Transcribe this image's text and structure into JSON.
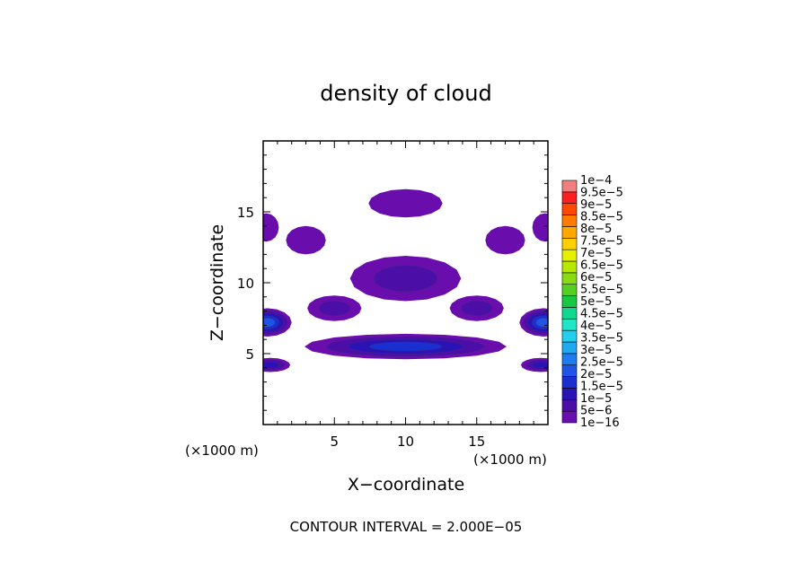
{
  "chart_data": {
    "type": "heatmap",
    "title": "density of cloud",
    "xlabel": "X−coordinate",
    "ylabel": "Z−coordinate",
    "x_unit": "(×1000 m)",
    "y_unit": "(×1000 m)",
    "xlim": [
      0,
      20
    ],
    "ylim": [
      0,
      20
    ],
    "x_ticks": [
      5,
      10,
      15
    ],
    "y_ticks": [
      5,
      10,
      15
    ],
    "footer": "CONTOUR INTERVAL = 2.000E−05",
    "colorbar": {
      "labels": [
        "1e−16",
        "5e−6",
        "1e−5",
        "1.5e−5",
        "2e−5",
        "2.5e−5",
        "3e−5",
        "3.5e−5",
        "4e−5",
        "4.5e−5",
        "5e−5",
        "5.5e−5",
        "6e−5",
        "6.5e−5",
        "7e−5",
        "7.5e−5",
        "8e−5",
        "8.5e−5",
        "9e−5",
        "9.5e−5",
        "1e−4"
      ],
      "colors": [
        "#6a0dad",
        "#4b0fa8",
        "#2a12b5",
        "#1a2fd0",
        "#1e55e6",
        "#1f7cf0",
        "#20a8f0",
        "#20d0ec",
        "#20e6c8",
        "#10d890",
        "#18c840",
        "#55d020",
        "#88dc10",
        "#b8e800",
        "#e6f000",
        "#ffd000",
        "#ffa800",
        "#ff7c00",
        "#ff4800",
        "#f82020",
        "#f08080"
      ]
    },
    "blobs": [
      {
        "cx": 10.0,
        "cz": 15.6,
        "rx": 2.6,
        "rz": 1.0,
        "peak": 1e-06
      },
      {
        "cx": 3.0,
        "cz": 13.0,
        "rx": 1.4,
        "rz": 1.0,
        "peak": 1e-06
      },
      {
        "cx": 17.0,
        "cz": 13.0,
        "rx": 1.4,
        "rz": 1.0,
        "peak": 1e-06
      },
      {
        "cx": 0.2,
        "cz": 13.9,
        "rx": 0.9,
        "rz": 1.0,
        "peak": 1e-06
      },
      {
        "cx": 19.8,
        "cz": 13.9,
        "rx": 0.9,
        "rz": 1.0,
        "peak": 1e-06
      },
      {
        "cx": 10.0,
        "cz": 10.3,
        "rx": 3.9,
        "rz": 1.6,
        "peak": 7e-06
      },
      {
        "cx": 5.0,
        "cz": 8.2,
        "rx": 1.9,
        "rz": 0.9,
        "peak": 6e-06
      },
      {
        "cx": 15.0,
        "cz": 8.2,
        "rx": 1.9,
        "rz": 0.9,
        "peak": 6e-06
      },
      {
        "cx": 0.3,
        "cz": 7.2,
        "rx": 1.7,
        "rz": 1.0,
        "peak": 2.2e-05
      },
      {
        "cx": 19.7,
        "cz": 7.2,
        "rx": 1.7,
        "rz": 1.0,
        "peak": 2.2e-05
      },
      {
        "cx": 10.0,
        "cz": 5.5,
        "rx": 7.1,
        "rz": 0.9,
        "peak": 1.6e-05
      },
      {
        "cx": 0.5,
        "cz": 4.2,
        "rx": 1.4,
        "rz": 0.5,
        "peak": 1.2e-05
      },
      {
        "cx": 19.5,
        "cz": 4.2,
        "rx": 1.4,
        "rz": 0.5,
        "peak": 1.2e-05
      }
    ]
  }
}
